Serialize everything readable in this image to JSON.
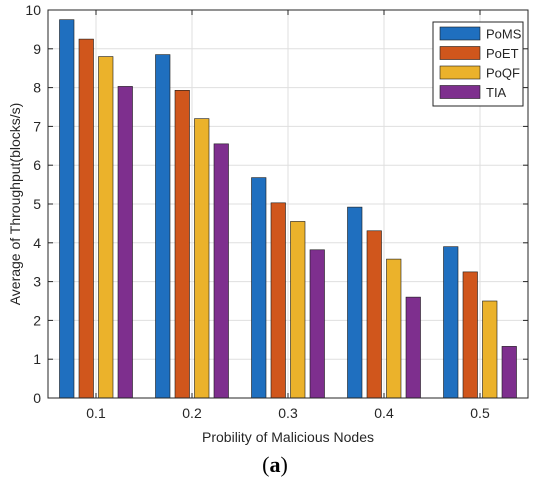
{
  "chart_data": {
    "type": "bar",
    "title": "",
    "xlabel": "Probility of Malicious Nodes",
    "ylabel": "Average of Throughput(blocks/s)",
    "categories": [
      "0.1",
      "0.2",
      "0.3",
      "0.4",
      "0.5"
    ],
    "ylim": [
      0,
      10
    ],
    "yticks": [
      "0",
      "1",
      "2",
      "3",
      "4",
      "5",
      "6",
      "7",
      "8",
      "9",
      "10"
    ],
    "grid": true,
    "legend_position": "top-right",
    "series": [
      {
        "name": "PoMS",
        "color": "#1f6fbf",
        "values": [
          9.75,
          8.85,
          5.68,
          4.92,
          3.9
        ]
      },
      {
        "name": "PoET",
        "color": "#d0561c",
        "values": [
          9.25,
          7.93,
          5.03,
          4.31,
          3.25
        ]
      },
      {
        "name": "PoQF",
        "color": "#ebb22b",
        "values": [
          8.8,
          7.2,
          4.55,
          3.58,
          2.5
        ]
      },
      {
        "name": "TIA",
        "color": "#7e2f8e",
        "values": [
          8.03,
          6.55,
          3.82,
          2.6,
          1.33
        ]
      }
    ]
  },
  "panel_label": {
    "open": "(",
    "letter": "a",
    "close": ")"
  }
}
